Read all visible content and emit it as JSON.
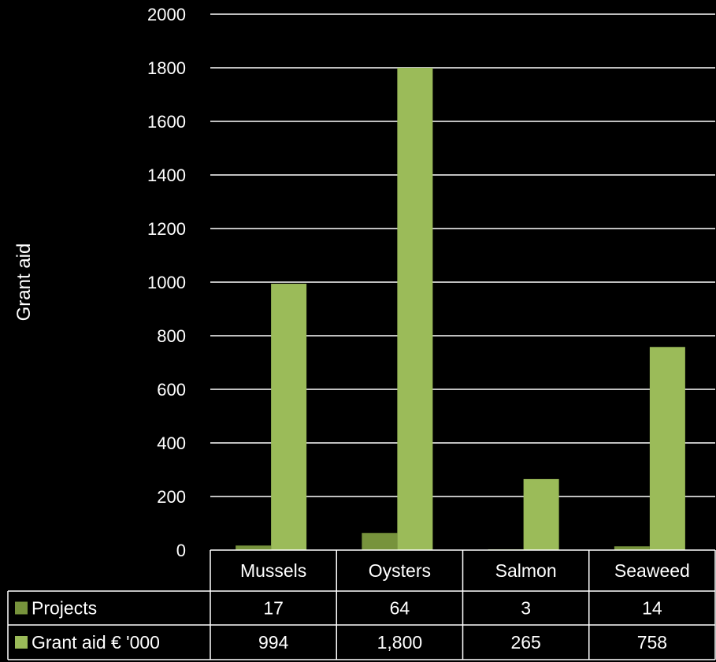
{
  "chart_data": {
    "type": "bar",
    "ylabel": "Grant aid",
    "xlabel": "",
    "ylim": [
      0,
      2000
    ],
    "yticks": [
      0,
      200,
      400,
      600,
      800,
      1000,
      1200,
      1400,
      1600,
      1800,
      2000
    ],
    "categories": [
      "Mussels",
      "Oysters",
      "Salmon",
      "Seaweed"
    ],
    "grid": true,
    "legend": "data-table",
    "series": [
      {
        "name": "Projects",
        "values": [
          17,
          64,
          3,
          14
        ],
        "labels": [
          "17",
          "64",
          "3",
          "14"
        ],
        "color": "#77933C"
      },
      {
        "name": "Grant aid € '000",
        "values": [
          994,
          1800,
          265,
          758
        ],
        "labels": [
          "994",
          "1,800",
          "265",
          "758"
        ],
        "color": "#9BBB59"
      }
    ]
  },
  "colors": {
    "background": "#000000",
    "text": "#FFFFFF",
    "gridline": "#FFFFFF"
  }
}
